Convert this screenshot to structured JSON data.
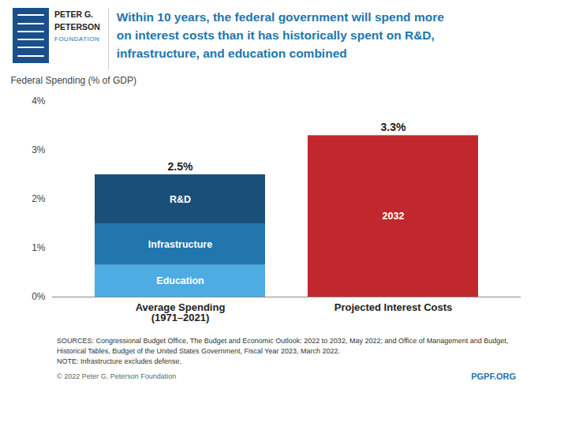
{
  "chart_data": {
    "type": "bar",
    "title": "Within 10 years, the federal government will spend more\non interest costs than it has historically spent on R&D,\ninfrastructure, and education combined",
    "y_label": "Federal Spending (% of GDP)",
    "categories": [
      "Average Spending\n(1971–2021)",
      "Projected Interest Costs"
    ],
    "stacked": true,
    "series": [
      {
        "name": "Education",
        "color": "#4DADE2",
        "values": [
          0.65,
          null
        ]
      },
      {
        "name": "Infrastructure",
        "color": "#2176AE",
        "values": [
          0.85,
          null
        ]
      },
      {
        "name": "R&D",
        "color": "#1A4F7A",
        "values": [
          1.0,
          null
        ]
      },
      {
        "name": "2032",
        "color": "#C0282D",
        "values": [
          null,
          3.3
        ]
      }
    ],
    "totals": [
      2.5,
      3.3
    ],
    "total_labels": [
      "2.5%",
      "3.3%"
    ],
    "ylim": [
      0,
      4.0
    ],
    "yticks": [
      {
        "value": 0,
        "label": "0%"
      },
      {
        "value": 1,
        "label": "1%"
      },
      {
        "value": 2,
        "label": "2%"
      },
      {
        "value": 3,
        "label": "3%"
      },
      {
        "value": 4,
        "label": "4%"
      }
    ],
    "grid": false,
    "logo_text": [
      "PETER G.",
      "PETERSON",
      "FOUNDATION"
    ],
    "source_lines": [
      "SOURCES: Congressional Budget Office, The Budget and Economic Outlook: 2022 to 2032, May 2022; and Office of Management and Budget,",
      "Historical Tables, Budget of the United States Government, Fiscal Year 2023, March 2022.",
      "NOTE: Infrastructure excludes defense."
    ],
    "copyright": "© 2022 Peter G. Peterson Foundation",
    "credit": "PGPF.ORG"
  }
}
